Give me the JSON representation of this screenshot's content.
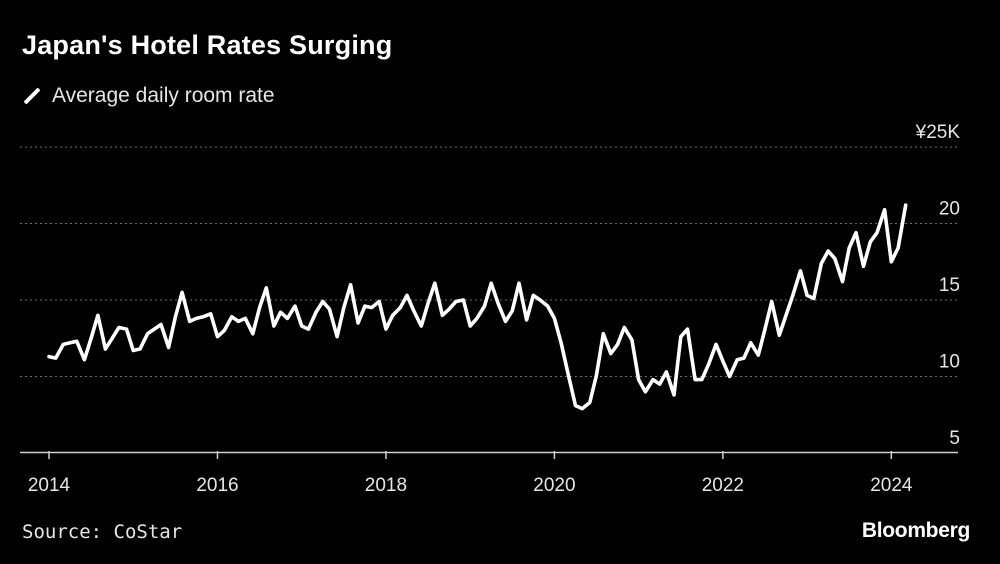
{
  "title": "Japan's Hotel Rates Surging",
  "legend": {
    "label": "Average daily room rate",
    "color": "#ffffff"
  },
  "source": "Source: CoStar",
  "brand": "Bloomberg",
  "colors": {
    "background": "#000000",
    "line": "#ffffff",
    "grid": "#6e6e6e",
    "text": "#e6e6e6"
  },
  "chart_data": {
    "type": "line",
    "title": "Japan's Hotel Rates Surging",
    "xlabel": "",
    "ylabel": "",
    "xlim": [
      2014,
      2025.1
    ],
    "ylim": [
      5,
      25
    ],
    "y_ticks": [
      5,
      10,
      15,
      20,
      25
    ],
    "y_tick_labels": [
      "5",
      "10",
      "15",
      "20",
      "¥25K"
    ],
    "x_ticks": [
      2014,
      2016,
      2018,
      2020,
      2022,
      2024
    ],
    "x_tick_labels": [
      "2014",
      "2016",
      "2018",
      "2020",
      "2022",
      "2024"
    ],
    "grid": true,
    "legend_position": "top-left",
    "series": [
      {
        "name": "Average daily room rate",
        "color": "#ffffff",
        "x": [
          2014.0,
          2014.08,
          2014.17,
          2014.25,
          2014.33,
          2014.42,
          2014.5,
          2014.58,
          2014.67,
          2014.75,
          2014.83,
          2014.92,
          2015.0,
          2015.08,
          2015.17,
          2015.25,
          2015.33,
          2015.42,
          2015.5,
          2015.58,
          2015.67,
          2015.75,
          2015.83,
          2015.92,
          2016.0,
          2016.08,
          2016.17,
          2016.25,
          2016.33,
          2016.42,
          2016.5,
          2016.58,
          2016.67,
          2016.75,
          2016.83,
          2016.92,
          2017.0,
          2017.08,
          2017.17,
          2017.25,
          2017.33,
          2017.42,
          2017.5,
          2017.58,
          2017.67,
          2017.75,
          2017.83,
          2017.92,
          2018.0,
          2018.08,
          2018.17,
          2018.25,
          2018.33,
          2018.42,
          2018.5,
          2018.58,
          2018.67,
          2018.75,
          2018.83,
          2018.92,
          2019.0,
          2019.08,
          2019.17,
          2019.25,
          2019.33,
          2019.42,
          2019.5,
          2019.58,
          2019.67,
          2019.75,
          2019.83,
          2019.92,
          2020.0,
          2020.08,
          2020.17,
          2020.25,
          2020.33,
          2020.42,
          2020.5,
          2020.58,
          2020.67,
          2020.75,
          2020.83,
          2020.92,
          2021.0,
          2021.08,
          2021.17,
          2021.25,
          2021.33,
          2021.42,
          2021.5,
          2021.58,
          2021.67,
          2021.75,
          2021.83,
          2021.92,
          2022.0,
          2022.08,
          2022.17,
          2022.25,
          2022.33,
          2022.42,
          2022.5,
          2022.58,
          2022.67,
          2022.75,
          2022.83,
          2022.92,
          2023.0,
          2023.08,
          2023.17,
          2023.25,
          2023.33,
          2023.42,
          2023.5,
          2023.58,
          2023.67,
          2023.75,
          2023.83,
          2023.92,
          2024.0,
          2024.08,
          2024.17
        ],
        "values": [
          11.3,
          11.2,
          12.1,
          12.2,
          12.3,
          11.1,
          12.5,
          14.0,
          11.8,
          12.5,
          13.2,
          13.1,
          11.7,
          11.8,
          12.8,
          13.1,
          13.4,
          11.9,
          13.9,
          15.5,
          13.6,
          13.8,
          13.9,
          14.1,
          12.6,
          13.0,
          13.9,
          13.6,
          13.8,
          12.8,
          14.5,
          15.8,
          13.3,
          14.2,
          13.8,
          14.6,
          13.3,
          13.1,
          14.2,
          14.9,
          14.4,
          12.6,
          14.5,
          16.0,
          13.5,
          14.6,
          14.5,
          14.9,
          13.1,
          14.0,
          14.5,
          15.3,
          14.3,
          13.3,
          14.8,
          16.1,
          14.0,
          14.4,
          14.9,
          15.0,
          13.3,
          13.8,
          14.6,
          16.1,
          14.8,
          13.6,
          14.3,
          16.1,
          13.7,
          15.3,
          15.0,
          14.6,
          13.8,
          12.2,
          10.0,
          8.1,
          7.9,
          8.3,
          10.1,
          12.8,
          11.5,
          12.1,
          13.2,
          12.4,
          9.8,
          9.0,
          9.8,
          9.5,
          10.3,
          8.8,
          12.6,
          13.1,
          9.8,
          9.8,
          10.8,
          12.1,
          11.0,
          10.0,
          11.1,
          11.2,
          12.2,
          11.4,
          13.1,
          14.9,
          12.7,
          14.0,
          15.3,
          16.9,
          15.3,
          15.1,
          17.4,
          18.2,
          17.7,
          16.2,
          18.4,
          19.4,
          17.2,
          18.8,
          19.4,
          20.9,
          17.5,
          18.4,
          21.2
        ]
      }
    ]
  }
}
